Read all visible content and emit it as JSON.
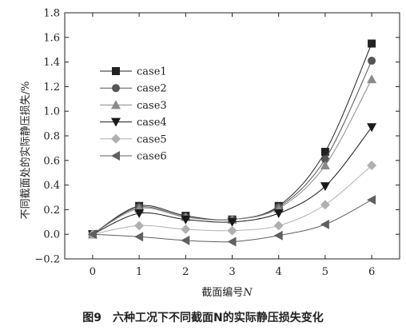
{
  "chart_data": {
    "type": "line",
    "ylabel": "不同截面处的实际静压损失/%",
    "xlabel_main": "截面编号",
    "xlabel_var": "N",
    "x": [
      0,
      1,
      2,
      3,
      4,
      5,
      6
    ],
    "xlim": [
      -0.6,
      6.6
    ],
    "ylim": [
      -0.2,
      1.8
    ],
    "xticks": [
      "0",
      "1",
      "2",
      "3",
      "4",
      "5",
      "6"
    ],
    "yticks": [
      "−0.2",
      "0.0",
      "0.2",
      "0.4",
      "0.6",
      "0.8",
      "1.0",
      "1.2",
      "1.4",
      "1.6",
      "1.8"
    ],
    "ytick_values": [
      -0.2,
      0.0,
      0.2,
      0.4,
      0.6,
      0.8,
      1.0,
      1.2,
      1.4,
      1.6,
      1.8
    ],
    "legend_position": "top-left",
    "grid": false,
    "series": [
      {
        "name": "case1",
        "marker": "square",
        "color": "#222222",
        "values": [
          0.0,
          0.23,
          0.15,
          0.12,
          0.23,
          0.67,
          1.55
        ]
      },
      {
        "name": "case2",
        "marker": "circle",
        "color": "#555555",
        "values": [
          0.0,
          0.22,
          0.14,
          0.12,
          0.22,
          0.61,
          1.41
        ]
      },
      {
        "name": "case3",
        "marker": "triangle-up",
        "color": "#8a8a8a",
        "values": [
          0.0,
          0.21,
          0.14,
          0.12,
          0.21,
          0.56,
          1.26
        ]
      },
      {
        "name": "case4",
        "marker": "triangle-down",
        "color": "#1a1a1a",
        "values": [
          0.0,
          0.17,
          0.12,
          0.1,
          0.17,
          0.39,
          0.87
        ]
      },
      {
        "name": "case5",
        "marker": "diamond",
        "color": "#b0b0b0",
        "values": [
          0.0,
          0.07,
          0.04,
          0.03,
          0.07,
          0.24,
          0.56
        ]
      },
      {
        "name": "case6",
        "marker": "triangle-left",
        "color": "#606060",
        "values": [
          0.0,
          -0.02,
          -0.05,
          -0.06,
          -0.01,
          0.08,
          0.28
        ]
      }
    ]
  },
  "caption": "图9　六种工况下不同截面N的实际静压损失变化"
}
